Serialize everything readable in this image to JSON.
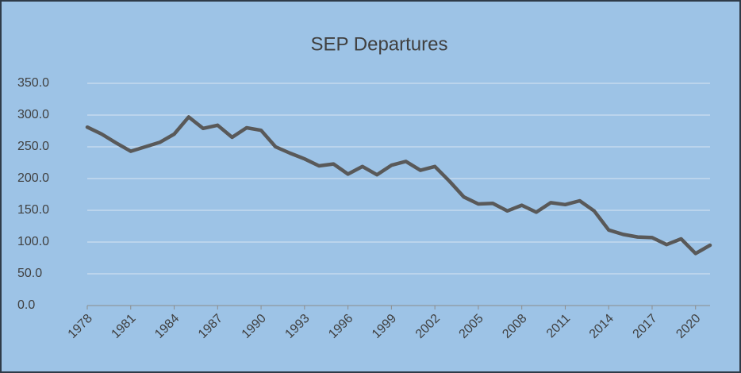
{
  "chart_data": {
    "type": "line",
    "title": "SEP Departures",
    "x": [
      1978,
      1979,
      1980,
      1981,
      1982,
      1983,
      1984,
      1985,
      1986,
      1987,
      1988,
      1989,
      1990,
      1991,
      1992,
      1993,
      1994,
      1995,
      1996,
      1997,
      1998,
      1999,
      2000,
      2001,
      2002,
      2003,
      2004,
      2005,
      2006,
      2007,
      2008,
      2009,
      2010,
      2011,
      2012,
      2013,
      2014,
      2015,
      2016,
      2017,
      2018,
      2019,
      2020,
      2021
    ],
    "values": [
      281,
      270,
      256,
      243,
      250,
      257,
      270,
      297,
      279,
      284,
      265,
      280,
      276,
      250,
      240,
      231,
      220,
      223,
      207,
      219,
      206,
      221,
      227,
      213,
      219,
      196,
      171,
      160,
      161,
      149,
      158,
      147,
      162,
      159,
      165,
      149,
      119,
      112,
      108,
      107,
      96,
      105,
      82,
      95
    ],
    "color": "#595959",
    "xlim": [
      1978,
      2021
    ],
    "xticks": [
      1978,
      1981,
      1984,
      1987,
      1990,
      1993,
      1996,
      1999,
      2002,
      2005,
      2008,
      2011,
      2014,
      2017,
      2020
    ],
    "ylim": [
      0,
      350
    ],
    "yticks": [
      {
        "value": 0,
        "label": "0.0"
      },
      {
        "value": 50,
        "label": "50.0"
      },
      {
        "value": 100,
        "label": "100.0"
      },
      {
        "value": 150,
        "label": "150.0"
      },
      {
        "value": 200,
        "label": "200.0"
      },
      {
        "value": 250,
        "label": "250.0"
      },
      {
        "value": 300,
        "label": "300.0"
      },
      {
        "value": 350,
        "label": "350.0"
      }
    ],
    "grid": true
  }
}
